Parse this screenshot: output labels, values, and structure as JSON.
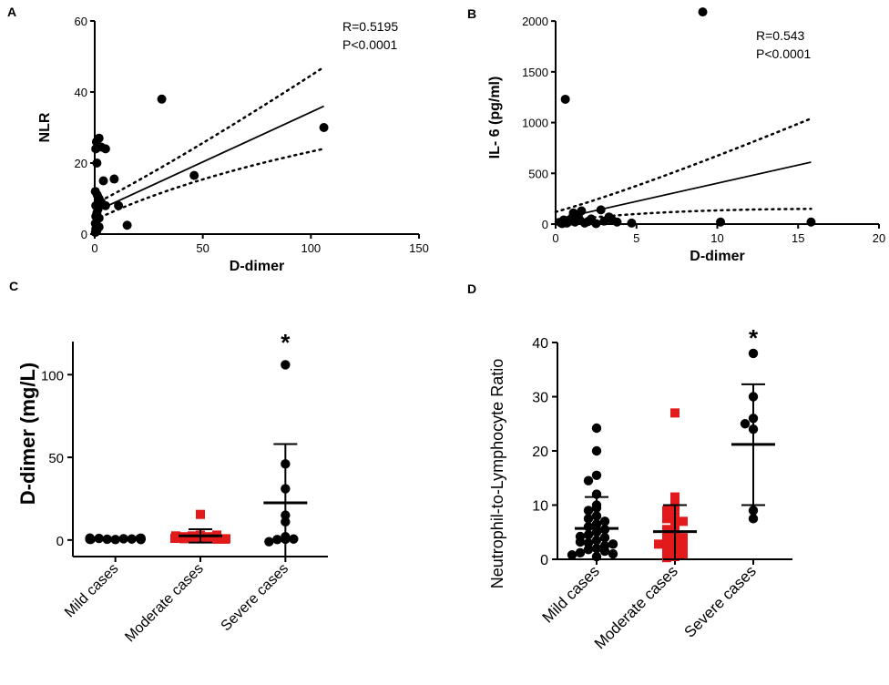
{
  "chart_data": [
    {
      "panel": "A",
      "type": "scatter",
      "xlabel": "D-dimer",
      "ylabel": "NLR",
      "xlim": [
        0,
        150
      ],
      "ylim": [
        0,
        60
      ],
      "xticks": [
        0,
        50,
        100,
        150
      ],
      "yticks": [
        0,
        20,
        40,
        60
      ],
      "stats": [
        "R=0.5195",
        "P<0.0001"
      ],
      "points": [
        [
          0.5,
          24
        ],
        [
          3,
          24.5
        ],
        [
          5,
          24
        ],
        [
          1,
          20
        ],
        [
          2,
          27
        ],
        [
          0.8,
          26
        ],
        [
          4,
          15
        ],
        [
          9,
          15.5
        ],
        [
          0.3,
          12
        ],
        [
          1.2,
          11
        ],
        [
          2,
          10
        ],
        [
          0.5,
          8
        ],
        [
          1.5,
          7
        ],
        [
          3,
          9
        ],
        [
          5,
          8
        ],
        [
          1,
          6
        ],
        [
          0.5,
          5
        ],
        [
          2,
          4.5
        ],
        [
          0.3,
          3
        ],
        [
          1,
          2.5
        ],
        [
          2,
          2
        ],
        [
          0.5,
          1.5
        ],
        [
          1,
          1
        ],
        [
          0.3,
          0.5
        ],
        [
          11,
          8
        ],
        [
          15,
          2.5
        ],
        [
          31,
          38
        ],
        [
          46,
          16.5
        ],
        [
          106,
          30
        ]
      ],
      "fit": {
        "from": [
          0,
          6.3
        ],
        "to": [
          106,
          36
        ]
      },
      "ci_upper": [
        [
          0,
          8.5
        ],
        [
          40,
          23
        ],
        [
          106,
          47
        ]
      ],
      "ci_lower": [
        [
          0,
          4
        ],
        [
          40,
          13.5
        ],
        [
          106,
          24
        ]
      ]
    },
    {
      "panel": "B",
      "type": "scatter",
      "xlabel": "D-dimer",
      "ylabel": "IL- 6 (pg/ml)",
      "xlim": [
        0,
        20
      ],
      "ylim": [
        0,
        2100
      ],
      "xticks": [
        0,
        5,
        10,
        15,
        20
      ],
      "yticks": [
        0,
        500,
        1000,
        1500,
        2000
      ],
      "stats": [
        "R=0.543",
        "P<0.0001"
      ],
      "points": [
        [
          0.6,
          1230
        ],
        [
          9.1,
          2090
        ],
        [
          0.3,
          15
        ],
        [
          0.5,
          40
        ],
        [
          0.7,
          10
        ],
        [
          0.9,
          30
        ],
        [
          1.0,
          60
        ],
        [
          1.2,
          20
        ],
        [
          1.4,
          90
        ],
        [
          1.5,
          40
        ],
        [
          1.6,
          130
        ],
        [
          1.8,
          10
        ],
        [
          2.0,
          25
        ],
        [
          2.2,
          50
        ],
        [
          2.5,
          5
        ],
        [
          2.8,
          140
        ],
        [
          3.0,
          30
        ],
        [
          3.3,
          70
        ],
        [
          3.5,
          40
        ],
        [
          3.8,
          20
        ],
        [
          4.7,
          10
        ],
        [
          10.2,
          20
        ],
        [
          15.8,
          20
        ],
        [
          0.4,
          5
        ],
        [
          1.1,
          110
        ]
      ],
      "fit": {
        "from": [
          0,
          45
        ],
        "to": [
          15.8,
          610
        ]
      },
      "ci_upper": [
        [
          0,
          120
        ],
        [
          5,
          410
        ],
        [
          15.8,
          1040
        ]
      ],
      "ci_lower": [
        [
          0,
          20
        ],
        [
          5,
          70
        ],
        [
          15.8,
          150
        ]
      ]
    },
    {
      "panel": "C",
      "type": "scatter",
      "categories": [
        "Mild cases",
        "Moderate cases",
        "Severe cases"
      ],
      "ylabel": "D-dimer (mg/L)",
      "ylim": [
        -10,
        120
      ],
      "yticks": [
        0,
        50,
        100
      ],
      "significance": [
        "",
        "",
        "*"
      ],
      "series": [
        {
          "name": "Mild cases",
          "color": "#000000",
          "marker": "circle",
          "values": [
            0.3,
            0.5,
            0.8,
            1.0,
            0.6,
            0.4,
            0.9,
            1.2,
            0.7,
            0.5,
            0.3,
            0.8,
            1.1,
            0.6,
            0.4,
            0.9,
            0.7,
            0.5
          ],
          "mean": 0.7,
          "sd_low": 0.2,
          "sd_high": 1.3
        },
        {
          "name": "Moderate cases",
          "color": "#e31a1c",
          "marker": "square",
          "values": [
            15.5,
            3,
            2.5,
            2,
            1.5,
            1,
            1,
            0.8,
            0.5,
            2,
            3,
            1.5,
            0.5,
            1,
            2.5,
            0.8,
            1.2
          ],
          "mean": 2.5,
          "sd_low": -1.5,
          "sd_high": 6.5
        },
        {
          "name": "Severe cases",
          "color": "#000000",
          "marker": "circle",
          "values": [
            106,
            46,
            31,
            15,
            11,
            0.5,
            0.3,
            0.6,
            -1,
            2
          ],
          "mean": 22.5,
          "sd_low": -12,
          "sd_high": 58
        }
      ]
    },
    {
      "panel": "D",
      "type": "scatter",
      "categories": [
        "Mild cases",
        "Moderate cases",
        "Severe cases"
      ],
      "ylabel": "Neutrophil-to-Lymphocyte Ratio",
      "ylim": [
        0,
        40
      ],
      "yticks": [
        0,
        10,
        20,
        30,
        40
      ],
      "significance": [
        "",
        "",
        "*"
      ],
      "series": [
        {
          "name": "Mild cases",
          "color": "#000000",
          "marker": "circle",
          "values": [
            24.2,
            20,
            15.5,
            14.5,
            12,
            10,
            9.5,
            9,
            8,
            7.5,
            7,
            6.5,
            6,
            5,
            4.5,
            4,
            3.5,
            3,
            2.5,
            2,
            1.8,
            1.5,
            1.2,
            1,
            0.8,
            0.5,
            3.2,
            5.5,
            4.2,
            2.8
          ],
          "mean": 5.7,
          "sd_low": 0,
          "sd_high": 11.5
        },
        {
          "name": "Moderate cases",
          "color": "#e31a1c",
          "marker": "square",
          "values": [
            27,
            11.5,
            10.5,
            9.5,
            9,
            8,
            7.5,
            7,
            6.5,
            5.5,
            5,
            4.5,
            4,
            3.5,
            3,
            2.5,
            2,
            1.5,
            1,
            0.5,
            0.3,
            2.8
          ],
          "mean": 5.1,
          "sd_low": 0,
          "sd_high": 10
        },
        {
          "name": "Severe cases",
          "color": "#000000",
          "marker": "circle",
          "values": [
            38,
            30,
            26,
            25,
            24,
            9,
            7.5
          ],
          "mean": 21.2,
          "sd_low": 10,
          "sd_high": 32.3
        }
      ]
    }
  ]
}
